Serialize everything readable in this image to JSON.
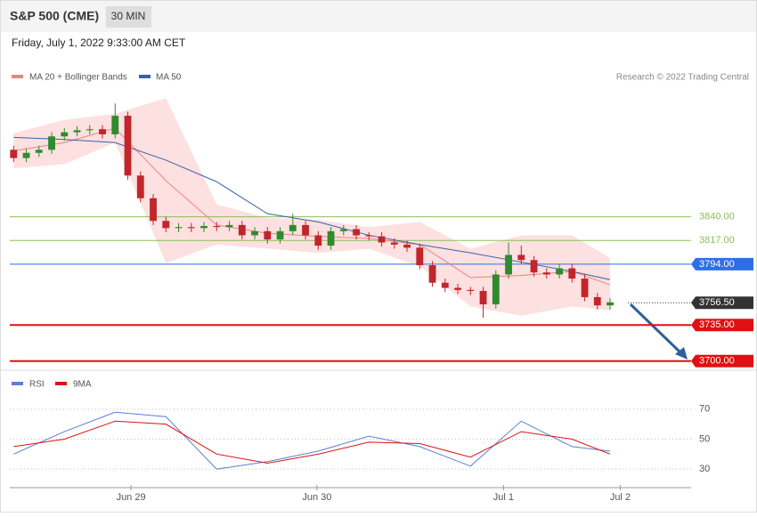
{
  "chart_data": {
    "type": "candlestick",
    "title": "S&P 500 (CME)",
    "interval": "30 MIN",
    "subtitle": "Friday, July 1, 2022 9:33:00 AM CET",
    "credit": "Research © 2022 Trading Central",
    "ylim": [
      3692,
      3964
    ],
    "xlim": [
      -0.3,
      48.4
    ],
    "xticks": [
      {
        "value": 9.25,
        "label": "Jun 29"
      },
      {
        "value": 23.9,
        "label": "Jun 30"
      },
      {
        "value": 38.6,
        "label": "Jul 1"
      },
      {
        "value": 47.8,
        "label": "Jul 2"
      }
    ],
    "candles": [
      [
        3905,
        3909,
        3893,
        3897
      ],
      [
        3897,
        3906,
        3893,
        3902
      ],
      [
        3902,
        3909,
        3898,
        3905
      ],
      [
        3905,
        3922,
        3901,
        3918
      ],
      [
        3918,
        3926,
        3914,
        3922
      ],
      [
        3922,
        3928,
        3918,
        3924
      ],
      [
        3924,
        3929,
        3920,
        3925
      ],
      [
        3925,
        3929,
        3916,
        3920
      ],
      [
        3920,
        3950,
        3916,
        3938
      ],
      [
        3938,
        3942,
        3876,
        3880
      ],
      [
        3880,
        3884,
        3854,
        3858
      ],
      [
        3858,
        3862,
        3832,
        3836
      ],
      [
        3836,
        3840,
        3825,
        3829
      ],
      [
        3829,
        3834,
        3825,
        3830
      ],
      [
        3830,
        3834,
        3825,
        3829
      ],
      [
        3829,
        3835,
        3825,
        3831
      ],
      [
        3831,
        3835,
        3826,
        3830
      ],
      [
        3830,
        3836,
        3826,
        3832
      ],
      [
        3832,
        3836,
        3818,
        3822
      ],
      [
        3822,
        3830,
        3818,
        3826
      ],
      [
        3826,
        3830,
        3814,
        3818
      ],
      [
        3818,
        3830,
        3814,
        3826
      ],
      [
        3826,
        3843,
        3822,
        3832
      ],
      [
        3832,
        3836,
        3818,
        3822
      ],
      [
        3822,
        3826,
        3808,
        3812
      ],
      [
        3812,
        3830,
        3808,
        3826
      ],
      [
        3826,
        3832,
        3822,
        3828
      ],
      [
        3828,
        3832,
        3818,
        3822
      ],
      [
        3822,
        3825,
        3817,
        3821
      ],
      [
        3821,
        3825,
        3811,
        3815
      ],
      [
        3815,
        3819,
        3809,
        3813
      ],
      [
        3813,
        3817,
        3806,
        3810
      ],
      [
        3810,
        3814,
        3789,
        3793
      ],
      [
        3793,
        3797,
        3772,
        3776
      ],
      [
        3776,
        3780,
        3767,
        3771
      ],
      [
        3771,
        3775,
        3765,
        3769
      ],
      [
        3769,
        3772,
        3764,
        3768
      ],
      [
        3768,
        3772,
        3742,
        3755
      ],
      [
        3755,
        3788,
        3751,
        3784
      ],
      [
        3784,
        3815,
        3780,
        3803
      ],
      [
        3803,
        3812,
        3794,
        3798
      ],
      [
        3798,
        3802,
        3782,
        3786
      ],
      [
        3786,
        3790,
        3780,
        3784
      ],
      [
        3784,
        3794,
        3780,
        3790
      ],
      [
        3790,
        3794,
        3776,
        3780
      ],
      [
        3780,
        3784,
        3758,
        3762
      ],
      [
        3762,
        3766,
        3750,
        3754
      ],
      [
        3754,
        3761,
        3750,
        3757
      ]
    ],
    "up_color": "#2e8b2e",
    "down_color": "#c0262b",
    "line_x": [
      0,
      4,
      8,
      12,
      16,
      20,
      24,
      28,
      32,
      36,
      40,
      44,
      47
    ],
    "bands": {
      "name": "MA 20 + Bollinger Bands",
      "color": "#f08080",
      "fill": "#fde0e0",
      "upper": [
        3921,
        3934,
        3940,
        3955,
        3852,
        3839,
        3837,
        3830,
        3835,
        3809,
        3822,
        3822,
        3800
      ],
      "lower": [
        3887,
        3891,
        3912,
        3795,
        3813,
        3809,
        3805,
        3809,
        3792,
        3753,
        3744,
        3753,
        3749
      ],
      "mid": [
        3904,
        3912,
        3926,
        3875,
        3832,
        3824,
        3821,
        3819,
        3813,
        3781,
        3783,
        3787,
        3774
      ]
    },
    "ma50": {
      "name": "MA 50",
      "color": "#3a5fa8",
      "values": [
        3917,
        3915,
        3912,
        3895,
        3874,
        3843,
        3835,
        3822,
        3813,
        3805,
        3796,
        3787,
        3779
      ]
    },
    "levels": [
      {
        "value": 3840,
        "label": "3840.00",
        "color": "#8bbf5a",
        "style": "text"
      },
      {
        "value": 3817,
        "label": "3817.00",
        "color": "#8bbf5a",
        "style": "text"
      },
      {
        "value": 3794,
        "label": "3794.00",
        "color": "#2f6fe6",
        "style": "box"
      },
      {
        "value": 3756.5,
        "label": "3756.50",
        "color": "#333333",
        "style": "last"
      },
      {
        "value": 3735,
        "label": "3735.00",
        "color": "#e01010",
        "style": "box"
      },
      {
        "value": 3700,
        "label": "3700.00",
        "color": "#e01010",
        "style": "box"
      }
    ],
    "rsi": {
      "ylim": [
        20,
        80
      ],
      "yticks": [
        30,
        50,
        70
      ],
      "series": [
        {
          "name": "RSI",
          "color": "#5b7fd6",
          "values": [
            40,
            55,
            68,
            65,
            30,
            35,
            42,
            52,
            45,
            32,
            62,
            45,
            42
          ]
        },
        {
          "name": "9MA",
          "color": "#e01010",
          "values": [
            45,
            50,
            62,
            60,
            40,
            34,
            40,
            48,
            47,
            38,
            55,
            50,
            40
          ]
        }
      ]
    }
  }
}
